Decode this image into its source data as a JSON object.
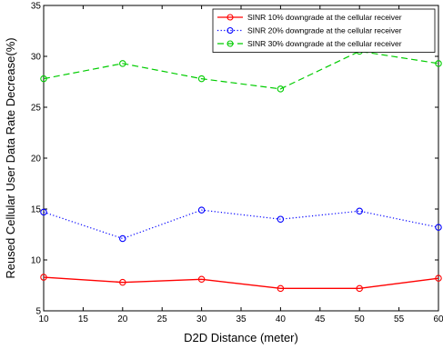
{
  "chart_data": {
    "type": "line",
    "title": "",
    "xlabel": "D2D Distance (meter)",
    "ylabel": "Reused Cellular User Data Rate Decrease(%)",
    "xlim": [
      10,
      60
    ],
    "ylim": [
      5,
      35
    ],
    "xticks": [
      10,
      15,
      20,
      25,
      30,
      35,
      40,
      45,
      50,
      55,
      60
    ],
    "yticks": [
      5,
      10,
      15,
      20,
      25,
      30,
      35
    ],
    "grid": false,
    "legend_position": "top-right",
    "x": [
      10,
      20,
      30,
      40,
      50,
      60
    ],
    "series": [
      {
        "name": "SINR 10% downgrade at the cellular receiver",
        "color": "#ff0000",
        "line_style": "solid",
        "marker": "circle",
        "values": [
          8.3,
          7.8,
          8.1,
          7.2,
          7.2,
          8.2
        ]
      },
      {
        "name": "SINR 20% downgrade at the cellular receiver",
        "color": "#0000ff",
        "line_style": "dotted",
        "marker": "circle",
        "values": [
          14.7,
          12.1,
          14.9,
          14.0,
          14.8,
          13.2
        ]
      },
      {
        "name": "SINR 30% downgrade at the cellular receiver",
        "color": "#00cc00",
        "line_style": "dashed",
        "marker": "circle",
        "values": [
          27.8,
          29.3,
          27.8,
          26.8,
          30.5,
          29.3
        ]
      }
    ]
  }
}
